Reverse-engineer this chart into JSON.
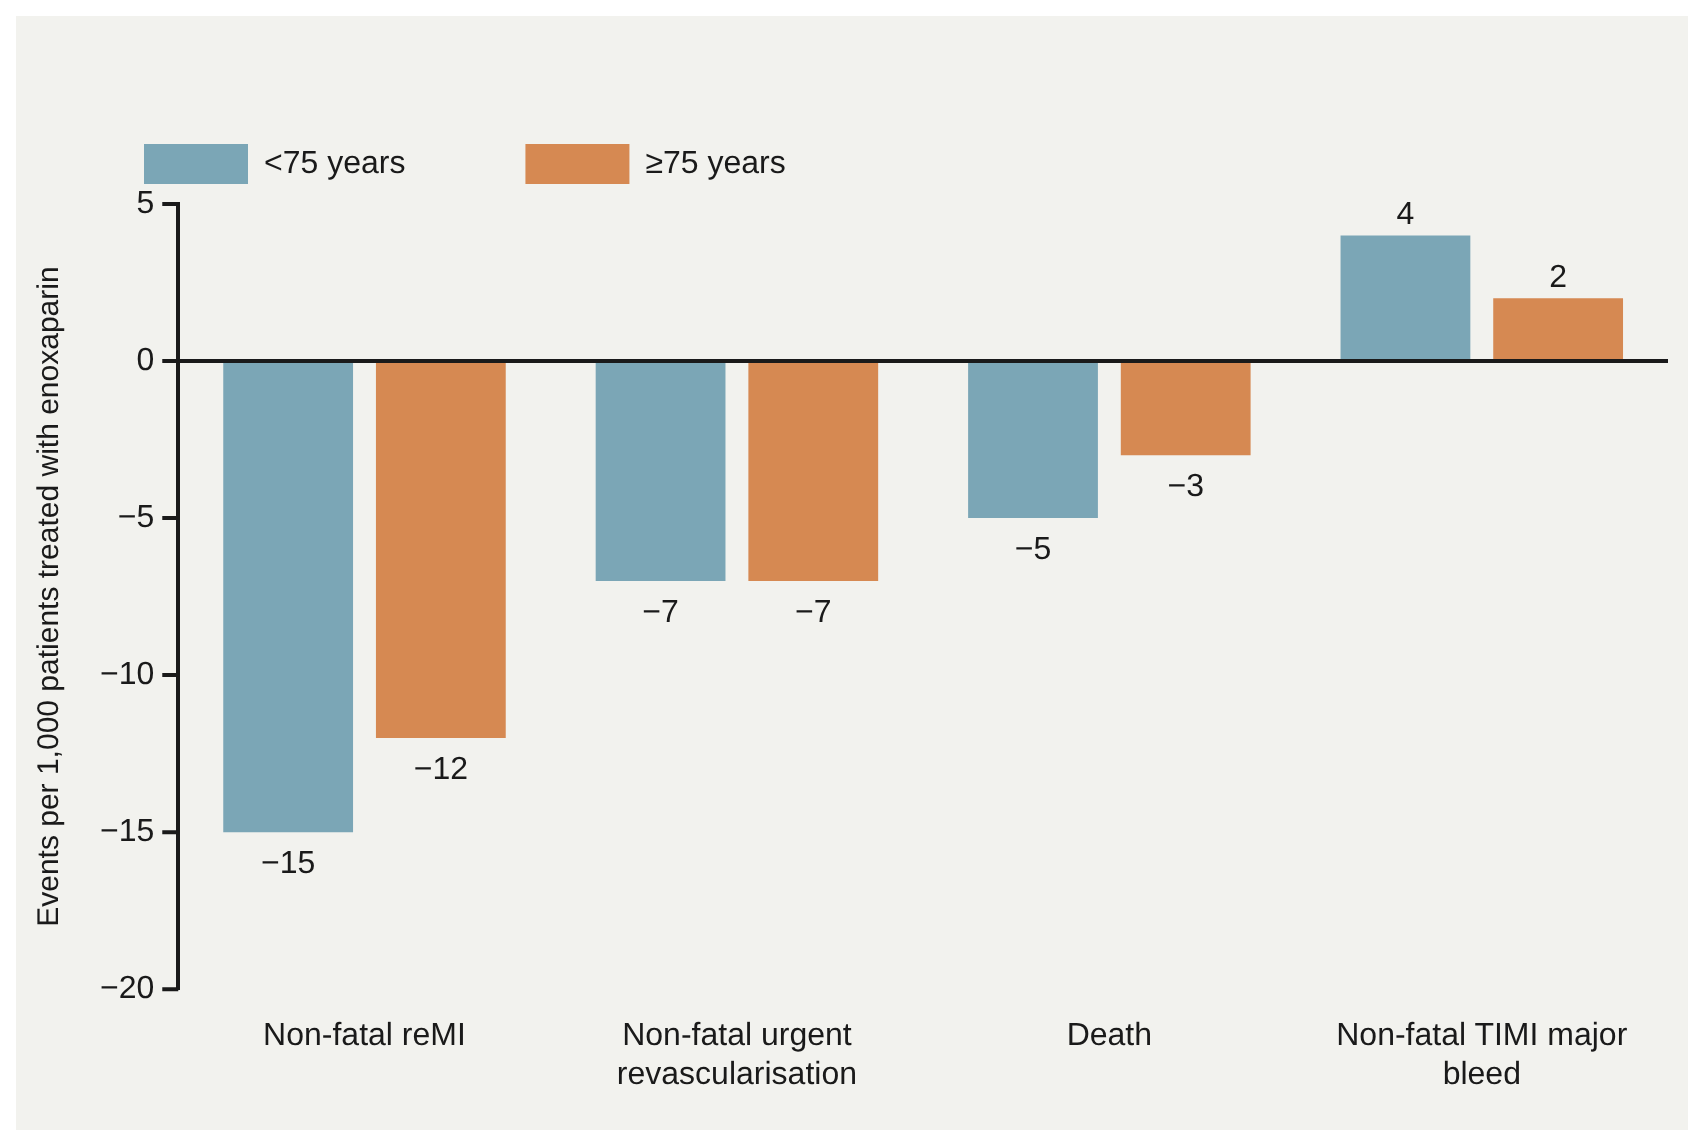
{
  "chart_data": {
    "type": "bar",
    "ylabel": "Events per 1,000 patients treated with enoxaparin",
    "categories": [
      "Non-fatal reMI",
      "Non-fatal urgent revascularisation",
      "Death",
      "Non-fatal TIMI major bleed"
    ],
    "series": [
      {
        "name": "<75 years",
        "color": "#7ba6b6",
        "values": [
          -15,
          -7,
          -5,
          4
        ],
        "value_labels": [
          "−15",
          "−7",
          "−5",
          "4"
        ]
      },
      {
        "name": "≥75 years",
        "color": "#d68952",
        "values": [
          -12,
          -7,
          -3,
          2
        ],
        "value_labels": [
          "−12",
          "−7",
          "−3",
          "2"
        ]
      }
    ],
    "ylim": [
      -20,
      5
    ],
    "yticks": [
      {
        "value": -20,
        "label": "−20"
      },
      {
        "value": -15,
        "label": "−15"
      },
      {
        "value": -10,
        "label": "−10"
      },
      {
        "value": -5,
        "label": "−5"
      },
      0,
      5
    ],
    "legend": "top left"
  }
}
